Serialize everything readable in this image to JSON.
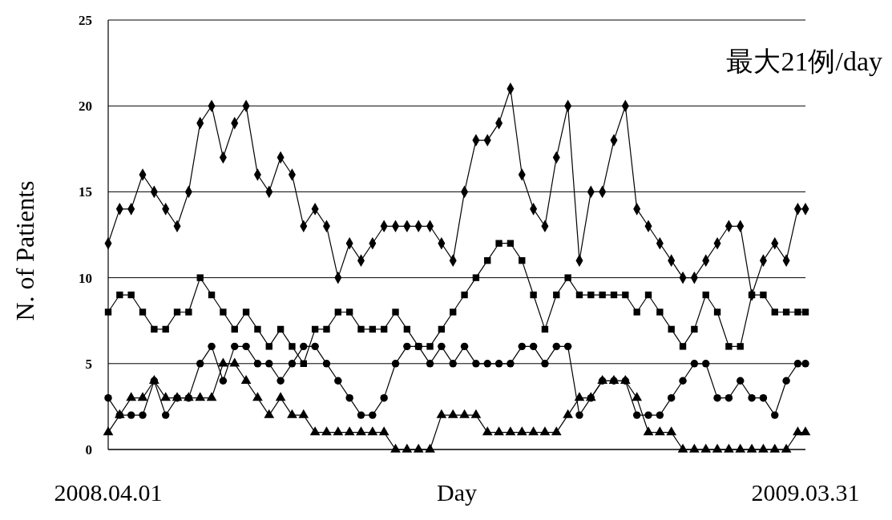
{
  "chart_data": {
    "type": "line",
    "xlabel": "Day",
    "ylabel": "N. of Patients",
    "annotations": [
      "最大21例/day"
    ],
    "x": [
      "2008-04-01",
      "2008-04-07",
      "2008-04-13",
      "2008-04-19",
      "2008-04-25",
      "2008-05-01",
      "2008-05-07",
      "2008-05-13",
      "2008-05-19",
      "2008-05-25",
      "2008-05-31",
      "2008-06-06",
      "2008-06-12",
      "2008-06-18",
      "2008-06-24",
      "2008-06-30",
      "2008-07-06",
      "2008-07-12",
      "2008-07-18",
      "2008-07-24",
      "2008-07-30",
      "2008-08-05",
      "2008-08-11",
      "2008-08-17",
      "2008-08-23",
      "2008-08-29",
      "2008-09-04",
      "2008-09-10",
      "2008-09-16",
      "2008-09-22",
      "2008-09-28",
      "2008-10-04",
      "2008-10-10",
      "2008-10-16",
      "2008-10-22",
      "2008-10-28",
      "2008-11-03",
      "2008-11-09",
      "2008-11-15",
      "2008-11-21",
      "2008-11-27",
      "2008-12-03",
      "2008-12-09",
      "2008-12-15",
      "2008-12-21",
      "2008-12-27",
      "2009-01-02",
      "2009-01-08",
      "2009-01-14",
      "2009-01-20",
      "2009-01-26",
      "2009-02-01",
      "2009-02-07",
      "2009-02-13",
      "2009-02-19",
      "2009-02-25",
      "2009-03-03",
      "2009-03-09",
      "2009-03-15",
      "2009-03-21",
      "2009-03-27",
      "2009-03-31"
    ],
    "xlim": [
      "2008-04-01",
      "2009-03-31"
    ],
    "xticks": [
      {
        "value": "2008-04-01",
        "label": "2008.04.01"
      },
      {
        "value": "2009-03-31",
        "label": "2009.03.31"
      }
    ],
    "ylim": [
      0,
      25
    ],
    "yticks": [
      0,
      5,
      10,
      15,
      20,
      25
    ],
    "grid": "y",
    "line_style": "solid",
    "series": [
      {
        "color": "#000000",
        "marker": "diamond",
        "values": [
          12,
          14,
          14,
          16,
          15,
          14,
          13,
          15,
          19,
          20,
          17,
          19,
          20,
          16,
          15,
          17,
          16,
          13,
          14,
          13,
          10,
          12,
          11,
          12,
          13,
          13,
          13,
          13,
          13,
          12,
          11,
          15,
          18,
          18,
          19,
          21,
          16,
          14,
          13,
          17,
          20,
          11,
          15,
          15,
          18,
          20,
          14,
          13,
          12,
          11,
          10,
          10,
          11,
          12,
          13,
          13,
          9,
          11,
          12,
          11,
          14,
          14
        ]
      },
      {
        "color": "#000000",
        "marker": "square",
        "values": [
          8,
          9,
          9,
          8,
          7,
          7,
          8,
          8,
          10,
          9,
          8,
          7,
          8,
          7,
          6,
          7,
          6,
          5,
          7,
          7,
          8,
          8,
          7,
          7,
          7,
          8,
          7,
          6,
          6,
          7,
          8,
          9,
          10,
          11,
          12,
          12,
          11,
          9,
          7,
          9,
          10,
          9,
          9,
          9,
          9,
          9,
          8,
          9,
          8,
          7,
          6,
          7,
          9,
          8,
          6,
          6,
          9,
          9,
          8,
          8,
          8,
          8
        ]
      },
      {
        "color": "#000000",
        "marker": "circle",
        "values": [
          3,
          2,
          2,
          2,
          4,
          2,
          3,
          3,
          5,
          6,
          4,
          6,
          6,
          5,
          5,
          4,
          5,
          6,
          6,
          5,
          4,
          3,
          2,
          2,
          3,
          5,
          6,
          6,
          5,
          6,
          5,
          6,
          5,
          5,
          5,
          5,
          6,
          6,
          5,
          6,
          6,
          2,
          3,
          4,
          4,
          4,
          2,
          2,
          2,
          3,
          4,
          5,
          5,
          3,
          3,
          4,
          3,
          3,
          2,
          4,
          5,
          5
        ]
      },
      {
        "color": "#000000",
        "marker": "triangle",
        "values": [
          1,
          2,
          3,
          3,
          4,
          3,
          3,
          3,
          3,
          3,
          5,
          5,
          4,
          3,
          2,
          3,
          2,
          2,
          1,
          1,
          1,
          1,
          1,
          1,
          1,
          0,
          0,
          0,
          0,
          2,
          2,
          2,
          2,
          1,
          1,
          1,
          1,
          1,
          1,
          1,
          2,
          3,
          3,
          4,
          4,
          4,
          3,
          1,
          1,
          1,
          0,
          0,
          0,
          0,
          0,
          0,
          0,
          0,
          0,
          0,
          1,
          1
        ]
      }
    ]
  }
}
